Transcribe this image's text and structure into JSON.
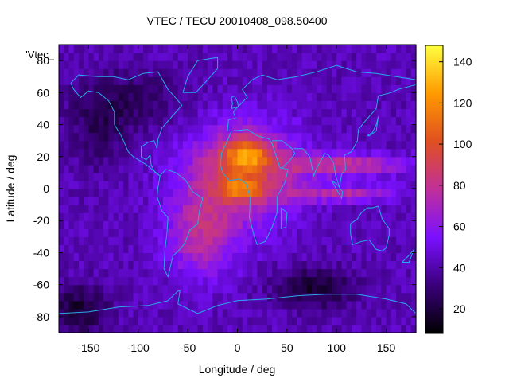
{
  "chart_data": {
    "type": "heatmap",
    "title": "VTEC / TECU 20010408_098.50400",
    "xlabel": "Longitude / deg",
    "ylabel": "Latitude / deg",
    "key_label": "'Vtec_",
    "xlim": [
      -180,
      180
    ],
    "ylim": [
      -90,
      90
    ],
    "x_ticks": [
      -150,
      -100,
      -50,
      0,
      50,
      100,
      150
    ],
    "y_ticks": [
      -80,
      -60,
      -40,
      -20,
      0,
      20,
      40,
      60,
      80
    ],
    "colorbar": {
      "range": [
        8,
        148
      ],
      "ticks": [
        20,
        40,
        60,
        80,
        100,
        120,
        140
      ],
      "palette": [
        "#000000",
        "#3a007a",
        "#7a10ff",
        "#c0309a",
        "#e05020",
        "#ff9a00",
        "#ffff40"
      ]
    },
    "grid_step_deg": 5,
    "background_level": 42,
    "blobs": [
      {
        "lon": 5,
        "lat": 10,
        "slon": 58,
        "slat": 30,
        "amp": 48
      },
      {
        "lon": -35,
        "lat": -30,
        "slon": 35,
        "slat": 26,
        "amp": 32
      },
      {
        "lon": 10,
        "lat": 22,
        "slon": 22,
        "slat": 9,
        "amp": 48
      },
      {
        "lon": 5,
        "lat": 0,
        "slon": 22,
        "slat": 7,
        "amp": 34
      },
      {
        "lon": 110,
        "lat": 15,
        "slon": 60,
        "slat": 7,
        "amp": 38
      },
      {
        "lon": 110,
        "lat": -3,
        "slon": 55,
        "slat": 5,
        "amp": 32
      },
      {
        "lon": -110,
        "lat": 55,
        "slon": 60,
        "slat": 20,
        "amp": -14
      },
      {
        "lon": 80,
        "lat": -62,
        "slon": 40,
        "slat": 12,
        "amp": -26
      },
      {
        "lon": -160,
        "lat": -75,
        "slon": 30,
        "slat": 15,
        "amp": -24
      },
      {
        "lon": -140,
        "lat": 35,
        "slon": 30,
        "slat": 25,
        "amp": -12
      }
    ],
    "coastlines": [
      [
        [
          -168,
          66
        ],
        [
          -160,
          71
        ],
        [
          -140,
          70
        ],
        [
          -125,
          70
        ],
        [
          -110,
          68
        ],
        [
          -95,
          72
        ],
        [
          -80,
          73
        ],
        [
          -70,
          62
        ],
        [
          -64,
          58
        ],
        [
          -56,
          52
        ],
        [
          -66,
          45
        ],
        [
          -76,
          38
        ],
        [
          -80,
          31
        ],
        [
          -81,
          25
        ],
        [
          -84,
          30
        ],
        [
          -90,
          29
        ],
        [
          -97,
          26
        ],
        [
          -97,
          20
        ],
        [
          -92,
          18
        ],
        [
          -88,
          21
        ],
        [
          -87,
          15
        ],
        [
          -83,
          10
        ],
        [
          -78,
          8
        ],
        [
          -80,
          9
        ],
        [
          -86,
          12
        ],
        [
          -92,
          15
        ],
        [
          -105,
          20
        ],
        [
          -110,
          23
        ],
        [
          -115,
          30
        ],
        [
          -118,
          34
        ],
        [
          -124,
          40
        ],
        [
          -124,
          48
        ],
        [
          -130,
          55
        ],
        [
          -140,
          60
        ],
        [
          -150,
          61
        ],
        [
          -158,
          57
        ],
        [
          -165,
          62
        ],
        [
          -168,
          66
        ]
      ],
      [
        [
          -78,
          8
        ],
        [
          -72,
          12
        ],
        [
          -62,
          10
        ],
        [
          -52,
          5
        ],
        [
          -45,
          -2
        ],
        [
          -35,
          -6
        ],
        [
          -38,
          -13
        ],
        [
          -40,
          -22
        ],
        [
          -48,
          -26
        ],
        [
          -53,
          -34
        ],
        [
          -58,
          -38
        ],
        [
          -65,
          -42
        ],
        [
          -68,
          -50
        ],
        [
          -70,
          -55
        ],
        [
          -74,
          -50
        ],
        [
          -73,
          -38
        ],
        [
          -71,
          -28
        ],
        [
          -70,
          -18
        ],
        [
          -76,
          -14
        ],
        [
          -81,
          -5
        ],
        [
          -80,
          1
        ],
        [
          -78,
          8
        ]
      ],
      [
        [
          -17,
          15
        ],
        [
          -16,
          22
        ],
        [
          -10,
          30
        ],
        [
          -6,
          36
        ],
        [
          10,
          37
        ],
        [
          20,
          33
        ],
        [
          32,
          31
        ],
        [
          35,
          28
        ],
        [
          43,
          13
        ],
        [
          51,
          12
        ],
        [
          48,
          4
        ],
        [
          40,
          -5
        ],
        [
          40,
          -15
        ],
        [
          35,
          -24
        ],
        [
          28,
          -33
        ],
        [
          20,
          -35
        ],
        [
          17,
          -30
        ],
        [
          12,
          -18
        ],
        [
          13,
          -6
        ],
        [
          9,
          3
        ],
        [
          2,
          6
        ],
        [
          -8,
          5
        ],
        [
          -15,
          10
        ],
        [
          -17,
          15
        ]
      ],
      [
        [
          -10,
          36
        ],
        [
          -9,
          43
        ],
        [
          -2,
          44
        ],
        [
          -4,
          48
        ],
        [
          5,
          54
        ],
        [
          10,
          57
        ],
        [
          5,
          62
        ],
        [
          15,
          68
        ],
        [
          25,
          71
        ],
        [
          40,
          68
        ],
        [
          60,
          70
        ],
        [
          80,
          73
        ],
        [
          100,
          77
        ],
        [
          120,
          73
        ],
        [
          140,
          72
        ],
        [
          160,
          70
        ],
        [
          180,
          68
        ]
      ],
      [
        [
          35,
          30
        ],
        [
          45,
          30
        ],
        [
          55,
          25
        ],
        [
          58,
          22
        ],
        [
          52,
          17
        ],
        [
          45,
          13
        ],
        [
          43,
          13
        ]
      ],
      [
        [
          57,
          25
        ],
        [
          66,
          25
        ],
        [
          73,
          20
        ],
        [
          77,
          8
        ],
        [
          80,
          13
        ],
        [
          88,
          22
        ],
        [
          92,
          21
        ],
        [
          97,
          16
        ],
        [
          99,
          8
        ],
        [
          103,
          1
        ],
        [
          105,
          9
        ],
        [
          109,
          12
        ],
        [
          108,
          21
        ],
        [
          115,
          23
        ],
        [
          121,
          30
        ],
        [
          122,
          37
        ],
        [
          126,
          40
        ],
        [
          130,
          43
        ],
        [
          140,
          50
        ],
        [
          142,
          58
        ],
        [
          155,
          60
        ],
        [
          162,
          62
        ],
        [
          180,
          65
        ]
      ],
      [
        [
          114,
          -22
        ],
        [
          114,
          -28
        ],
        [
          116,
          -35
        ],
        [
          125,
          -33
        ],
        [
          133,
          -32
        ],
        [
          140,
          -38
        ],
        [
          146,
          -39
        ],
        [
          150,
          -37
        ],
        [
          153,
          -29
        ],
        [
          153,
          -25
        ],
        [
          146,
          -19
        ],
        [
          142,
          -11
        ],
        [
          136,
          -12
        ],
        [
          131,
          -12
        ],
        [
          125,
          -15
        ],
        [
          121,
          -19
        ],
        [
          114,
          -22
        ]
      ],
      [
        [
          -180,
          -78
        ],
        [
          -150,
          -77
        ],
        [
          -120,
          -74
        ],
        [
          -90,
          -73
        ],
        [
          -70,
          -70
        ],
        [
          -60,
          -64
        ],
        [
          -58,
          -64
        ],
        [
          -60,
          -72
        ],
        [
          -40,
          -78
        ],
        [
          -20,
          -73
        ],
        [
          0,
          -70
        ],
        [
          30,
          -69
        ],
        [
          60,
          -67
        ],
        [
          90,
          -66
        ],
        [
          120,
          -66
        ],
        [
          150,
          -69
        ],
        [
          170,
          -72
        ],
        [
          180,
          -78
        ]
      ],
      [
        [
          -55,
          60
        ],
        [
          -50,
          70
        ],
        [
          -40,
          80
        ],
        [
          -20,
          82
        ],
        [
          -20,
          75
        ],
        [
          -30,
          68
        ],
        [
          -42,
          60
        ],
        [
          -55,
          60
        ]
      ],
      [
        [
          -6,
          50
        ],
        [
          1,
          51
        ],
        [
          0,
          54
        ],
        [
          -3,
          58
        ],
        [
          -6,
          57
        ],
        [
          -5,
          53
        ],
        [
          -6,
          50
        ]
      ],
      [
        [
          44,
          -12
        ],
        [
          50,
          -15
        ],
        [
          49,
          -24
        ],
        [
          44,
          -25
        ],
        [
          44,
          -12
        ]
      ],
      [
        [
          95,
          5
        ],
        [
          105,
          -6
        ],
        [
          106,
          -2
        ],
        [
          100,
          3
        ],
        [
          95,
          5
        ]
      ],
      [
        [
          131,
          33
        ],
        [
          136,
          35
        ],
        [
          140,
          40
        ],
        [
          142,
          45
        ],
        [
          140,
          36
        ],
        [
          133,
          33
        ],
        [
          131,
          33
        ]
      ],
      [
        [
          166,
          -46
        ],
        [
          174,
          -41
        ],
        [
          178,
          -38
        ],
        [
          173,
          -46
        ],
        [
          166,
          -46
        ]
      ]
    ]
  }
}
